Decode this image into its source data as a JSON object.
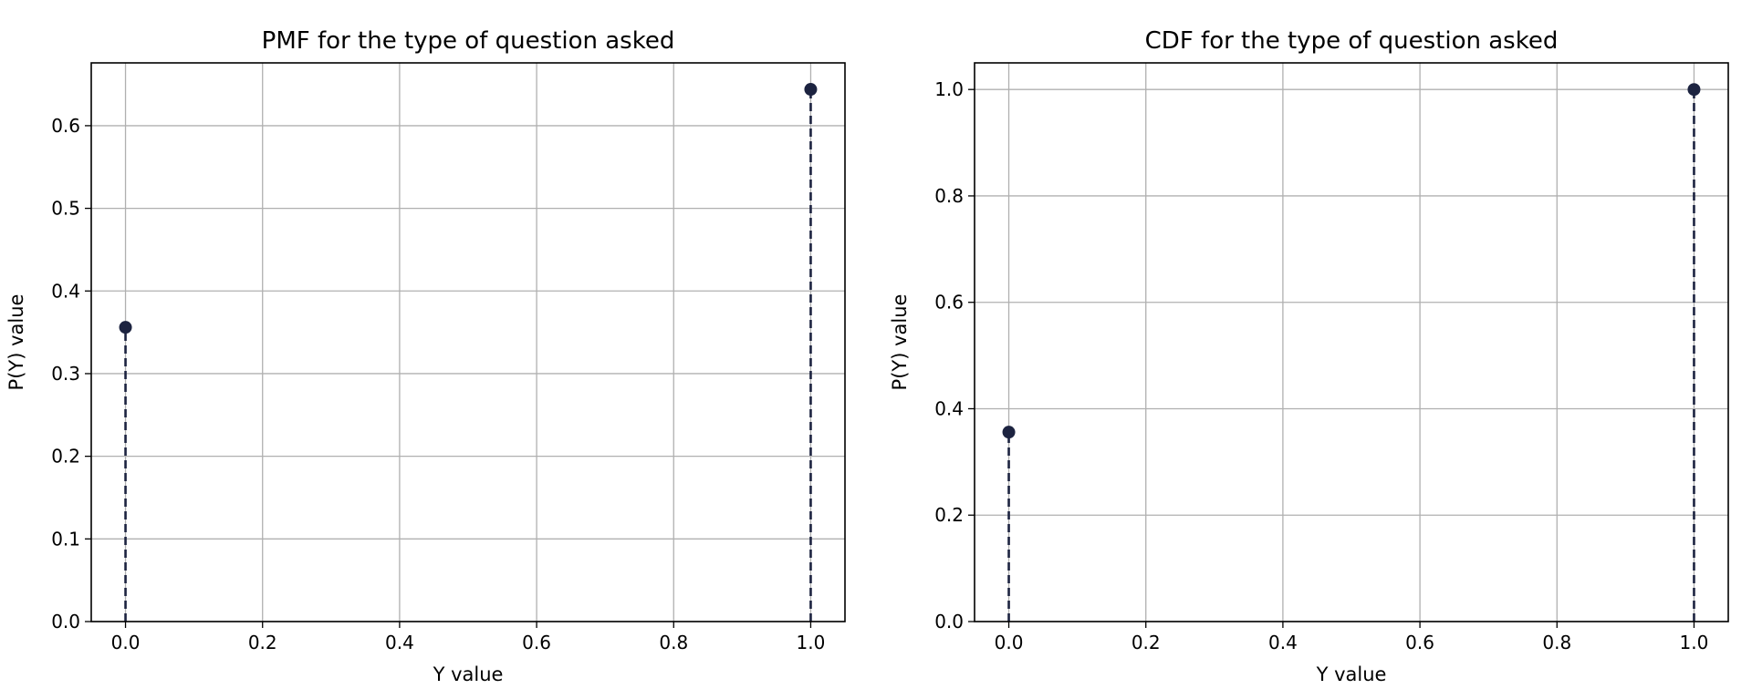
{
  "chart_data": [
    {
      "type": "stem",
      "title": "PMF for the type of question asked",
      "xlabel": "Y value",
      "ylabel": "P(Y) value",
      "x": [
        0.0,
        1.0
      ],
      "y": [
        0.356,
        0.644
      ],
      "xlim": [
        -0.05,
        1.05
      ],
      "ylim": [
        0,
        0.676
      ],
      "xticks": [
        "0.0",
        "0.2",
        "0.4",
        "0.6",
        "0.8",
        "1.0"
      ],
      "yticks": [
        "0.0",
        "0.1",
        "0.2",
        "0.3",
        "0.4",
        "0.5",
        "0.6"
      ],
      "grid": true,
      "color": "#1c2340",
      "line_style": "dashed"
    },
    {
      "type": "stem",
      "title": "CDF for the type of question asked",
      "xlabel": "Y value",
      "ylabel": "P(Y) value",
      "x": [
        0.0,
        1.0
      ],
      "y": [
        0.356,
        1.0
      ],
      "xlim": [
        -0.05,
        1.05
      ],
      "ylim": [
        0,
        1.05
      ],
      "xticks": [
        "0.0",
        "0.2",
        "0.4",
        "0.6",
        "0.8",
        "1.0"
      ],
      "yticks": [
        "0.0",
        "0.2",
        "0.4",
        "0.6",
        "0.8",
        "1.0"
      ],
      "grid": true,
      "color": "#1c2340",
      "line_style": "dashed"
    }
  ]
}
